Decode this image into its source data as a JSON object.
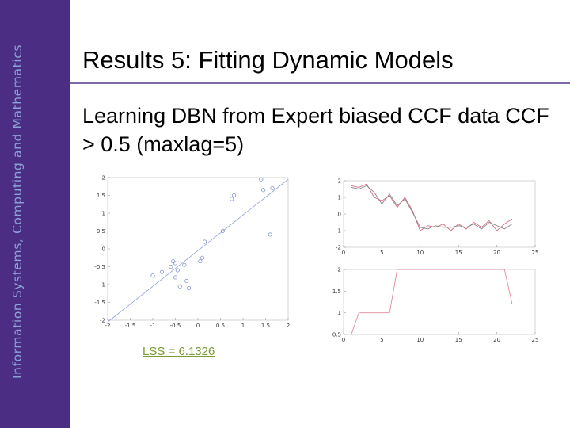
{
  "sidebar": {
    "text": "Information Systems, Computing and Mathematics",
    "color": "#4b2e83"
  },
  "slide": {
    "title": "Results 5: Fitting Dynamic Models",
    "subtitle": "Learning DBN from Expert biased CCF data CCF > 0.5 (maxlag=5)",
    "lss_label": "LSS = 6.1326"
  },
  "chart_data": [
    {
      "type": "scatter",
      "title": "",
      "xlabel": "",
      "ylabel": "",
      "xlim": [
        -2,
        2
      ],
      "ylim": [
        -2,
        2
      ],
      "xticks": [
        -2,
        -1.5,
        -1,
        -0.5,
        0,
        0.5,
        1,
        1.5,
        2
      ],
      "yticks": [
        -2,
        -1.5,
        -1,
        -0.5,
        0,
        0.5,
        1,
        1.5,
        2
      ],
      "xtick_labels": [
        "-2",
        "-1.5",
        "-1",
        "-0.5",
        "0",
        "0.5",
        "1",
        "1.5",
        "2"
      ],
      "ytick_labels": [
        "-2",
        "-1.5",
        "-1",
        "-0.5",
        "0",
        "0.5",
        "1",
        "1.5",
        "2"
      ],
      "points": [
        [
          1.4,
          1.95
        ],
        [
          1.65,
          1.7
        ],
        [
          1.45,
          1.65
        ],
        [
          0.8,
          1.5
        ],
        [
          0.75,
          1.4
        ],
        [
          1.6,
          0.4
        ],
        [
          0.55,
          0.5
        ],
        [
          0.15,
          0.2
        ],
        [
          -0.55,
          -0.35
        ],
        [
          -0.5,
          -0.4
        ],
        [
          -0.6,
          -0.5
        ],
        [
          -0.45,
          -0.6
        ],
        [
          -0.3,
          -0.45
        ],
        [
          -0.8,
          -0.65
        ],
        [
          -1.0,
          -0.75
        ],
        [
          -0.5,
          -0.8
        ],
        [
          -0.25,
          -0.9
        ],
        [
          0.05,
          -0.35
        ],
        [
          0.1,
          -0.25
        ],
        [
          -0.4,
          -1.05
        ],
        [
          -0.2,
          -1.1
        ]
      ],
      "fit_line": {
        "x": [
          -2,
          2
        ],
        "y": [
          -2.05,
          1.95
        ]
      },
      "marker_color": "#6b7fc4",
      "line_color": "#8fa2d6"
    },
    {
      "type": "line",
      "title": "",
      "xlabel": "",
      "ylabel": "",
      "xlim": [
        0,
        25
      ],
      "ylim": [
        -2,
        2
      ],
      "xticks": [
        0,
        5,
        10,
        15,
        20,
        25
      ],
      "yticks": [
        -2,
        -1,
        0,
        1,
        2
      ],
      "xtick_labels": [
        "0",
        "5",
        "10",
        "15",
        "20",
        "25"
      ],
      "ytick_labels": [
        "-2",
        "-1",
        "0",
        "1",
        "2"
      ],
      "x": [
        1,
        2,
        3,
        4,
        5,
        6,
        7,
        8,
        9,
        10,
        11,
        12,
        13,
        14,
        15,
        16,
        17,
        18,
        19,
        20,
        21,
        22
      ],
      "series": [
        {
          "values": [
            1.7,
            1.6,
            1.8,
            1.0,
            0.8,
            1.1,
            0.4,
            1.0,
            0.2,
            -1.0,
            -0.7,
            -0.8,
            -0.6,
            -1.0,
            -0.6,
            -0.9,
            -0.5,
            -0.8,
            -0.4,
            -1.0,
            -0.6,
            -0.3
          ],
          "color": "#d96a7a"
        },
        {
          "values": [
            1.6,
            1.5,
            1.7,
            1.3,
            0.6,
            1.2,
            0.5,
            0.9,
            0.1,
            -0.8,
            -0.9,
            -0.7,
            -0.8,
            -0.8,
            -0.7,
            -0.8,
            -0.6,
            -0.9,
            -0.5,
            -0.7,
            -0.9,
            -0.6
          ],
          "color": "#8a8a8a"
        }
      ]
    },
    {
      "type": "line",
      "title": "",
      "xlabel": "",
      "ylabel": "",
      "xlim": [
        0,
        25
      ],
      "ylim": [
        0.5,
        2
      ],
      "xticks": [
        0,
        5,
        10,
        15,
        20,
        25
      ],
      "yticks": [
        0.5,
        1,
        1.5,
        2
      ],
      "xtick_labels": [
        "0",
        "5",
        "10",
        "15",
        "20",
        "25"
      ],
      "ytick_labels": [
        "0.5",
        "1",
        "1.5",
        "2"
      ],
      "x": [
        1,
        2,
        3,
        4,
        5,
        6,
        7,
        8,
        9,
        10,
        11,
        12,
        13,
        14,
        15,
        16,
        17,
        18,
        19,
        20,
        21,
        22
      ],
      "series": [
        {
          "values": [
            0.5,
            1,
            1,
            1,
            1,
            1,
            2,
            2,
            2,
            2,
            2,
            2,
            2,
            2,
            2,
            2,
            2,
            2,
            2,
            2,
            2,
            1.2
          ],
          "color": "#e08a98"
        }
      ]
    }
  ]
}
